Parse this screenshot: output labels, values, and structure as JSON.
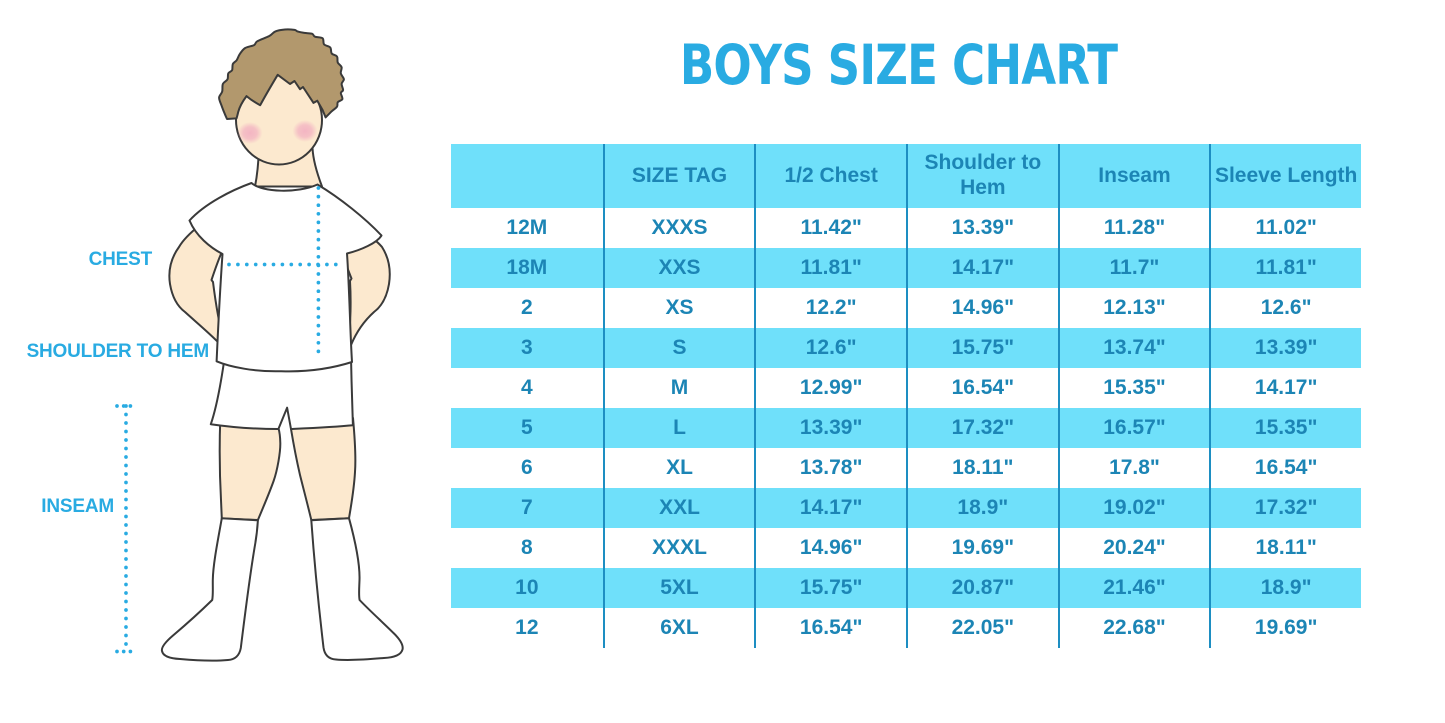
{
  "title": "BOYS SIZE CHART",
  "figure": {
    "description": "outline illustration of a boy wearing a white t-shirt, white shorts and white knee socks, with dotted measurement guides",
    "labels": {
      "chest": "CHEST",
      "shoulder_to_hem": "SHOULDER TO HEM",
      "inseam": "INSEAM"
    }
  },
  "table": {
    "columns": [
      "",
      "SIZE TAG",
      "1/2 Chest",
      "Shoulder to Hem",
      "Inseam",
      "Sleeve Length"
    ],
    "rows": [
      [
        "12M",
        "XXXS",
        "11.42\"",
        "13.39\"",
        "11.28\"",
        "11.02\""
      ],
      [
        "18M",
        "XXS",
        "11.81\"",
        "14.17\"",
        "11.7\"",
        "11.81\""
      ],
      [
        "2",
        "XS",
        "12.2\"",
        "14.96\"",
        "12.13\"",
        "12.6\""
      ],
      [
        "3",
        "S",
        "12.6\"",
        "15.75\"",
        "13.74\"",
        "13.39\""
      ],
      [
        "4",
        "M",
        "12.99\"",
        "16.54\"",
        "15.35\"",
        "14.17\""
      ],
      [
        "5",
        "L",
        "13.39\"",
        "17.32\"",
        "16.57\"",
        "15.35\""
      ],
      [
        "6",
        "XL",
        "13.78\"",
        "18.11\"",
        "17.8\"",
        "16.54\""
      ],
      [
        "7",
        "XXL",
        "14.17\"",
        "18.9\"",
        "19.02\"",
        "17.32\""
      ],
      [
        "8",
        "XXXL",
        "14.96\"",
        "19.69\"",
        "20.24\"",
        "18.11\""
      ],
      [
        "10",
        "5XL",
        "15.75\"",
        "20.87\"",
        "21.46\"",
        "18.9\""
      ],
      [
        "12",
        "6XL",
        "16.54\"",
        "22.05\"",
        "22.68\"",
        "19.69\""
      ]
    ]
  },
  "chart_data": {
    "type": "table",
    "title": "BOYS SIZE CHART",
    "columns": [
      "",
      "SIZE TAG",
      "1/2 Chest",
      "Shoulder to Hem",
      "Inseam",
      "Sleeve Length"
    ],
    "rows": [
      [
        "12M",
        "XXXS",
        "11.42\"",
        "13.39\"",
        "11.28\"",
        "11.02\""
      ],
      [
        "18M",
        "XXS",
        "11.81\"",
        "14.17\"",
        "11.7\"",
        "11.81\""
      ],
      [
        "2",
        "XS",
        "12.2\"",
        "14.96\"",
        "12.13\"",
        "12.6\""
      ],
      [
        "3",
        "S",
        "12.6\"",
        "15.75\"",
        "13.74\"",
        "13.39\""
      ],
      [
        "4",
        "M",
        "12.99\"",
        "16.54\"",
        "15.35\"",
        "14.17\""
      ],
      [
        "5",
        "L",
        "13.39\"",
        "17.32\"",
        "16.57\"",
        "15.35\""
      ],
      [
        "6",
        "XL",
        "13.78\"",
        "18.11\"",
        "17.8\"",
        "16.54\""
      ],
      [
        "7",
        "XXL",
        "14.17\"",
        "18.9\"",
        "19.02\"",
        "17.32\""
      ],
      [
        "8",
        "XXXL",
        "14.96\"",
        "19.69\"",
        "20.24\"",
        "18.11\""
      ],
      [
        "10",
        "5XL",
        "15.75\"",
        "20.87\"",
        "21.46\"",
        "18.9\""
      ],
      [
        "12",
        "6XL",
        "16.54\"",
        "22.05\"",
        "22.68\"",
        "19.69\""
      ]
    ],
    "stripe_pattern": "rows alternate white / cyan starting with white",
    "legend_position": "none",
    "grid": "vertical column dividers only"
  },
  "colors": {
    "accent-blue": "#29ABE2",
    "table-text": "#1C85B5",
    "table-line": "#1D8EC2",
    "row-cyan": "#6FE0FA",
    "outline": "#3A3A3A",
    "skin": "#FCE9CF",
    "hair": "#B2986D",
    "blush": "#F2AFC1",
    "white": "#FFFFFF"
  }
}
